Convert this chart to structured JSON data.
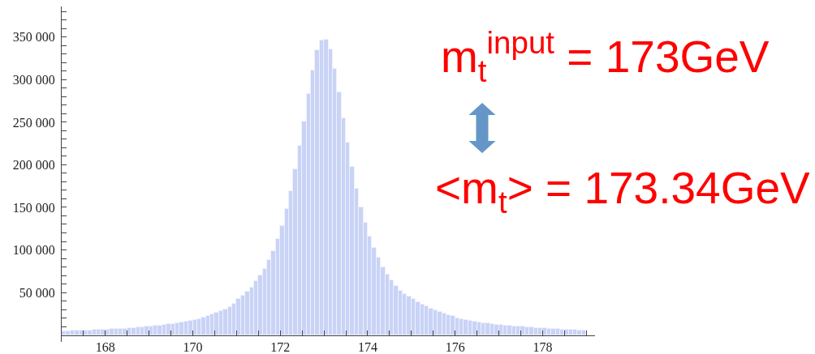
{
  "chart_data": {
    "type": "histogram",
    "bins": [
      167.0,
      167.1,
      167.2,
      167.3,
      167.4,
      167.5,
      167.6,
      167.7,
      167.8,
      167.9,
      168.0,
      168.1,
      168.2,
      168.3,
      168.4,
      168.5,
      168.6,
      168.7,
      168.8,
      168.9,
      169.0,
      169.1,
      169.2,
      169.3,
      169.4,
      169.5,
      169.6,
      169.7,
      169.8,
      169.9,
      170.0,
      170.1,
      170.2,
      170.3,
      170.4,
      170.5,
      170.6,
      170.7,
      170.8,
      170.9,
      171.0,
      171.1,
      171.2,
      171.3,
      171.4,
      171.5,
      171.6,
      171.7,
      171.8,
      171.9,
      172.0,
      172.1,
      172.2,
      172.3,
      172.4,
      172.5,
      172.6,
      172.7,
      172.8,
      172.9,
      173.0,
      173.1,
      173.2,
      173.3,
      173.4,
      173.5,
      173.6,
      173.7,
      173.8,
      173.9,
      174.0,
      174.1,
      174.2,
      174.3,
      174.4,
      174.5,
      174.6,
      174.7,
      174.8,
      174.9,
      175.0,
      175.1,
      175.2,
      175.3,
      175.4,
      175.5,
      175.6,
      175.7,
      175.8,
      175.9,
      176.0,
      176.1,
      176.2,
      176.3,
      176.4,
      176.5,
      176.6,
      176.7,
      176.8,
      176.9,
      177.0,
      177.1,
      177.2,
      177.3,
      177.4,
      177.5,
      177.6,
      177.7,
      177.8,
      177.9,
      178.0,
      178.1,
      178.2,
      178.3,
      178.4,
      178.5,
      178.6,
      178.7,
      178.8,
      178.9,
      179.0
    ],
    "values": [
      4000,
      4000,
      5000,
      5000,
      5000,
      5000,
      5000,
      6000,
      6000,
      6000,
      6000,
      7000,
      7000,
      7000,
      7000,
      8000,
      8000,
      9000,
      9000,
      10000,
      10000,
      11000,
      11000,
      12000,
      13000,
      13000,
      14000,
      15000,
      16000,
      17000,
      18000,
      19000,
      21000,
      22000,
      24000,
      26000,
      28000,
      30000,
      33000,
      37000,
      42000,
      46000,
      51000,
      56000,
      63000,
      70000,
      78000,
      88000,
      99000,
      113000,
      128000,
      148000,
      169000,
      195000,
      222000,
      251000,
      283000,
      311000,
      335000,
      346000,
      347000,
      336000,
      313000,
      285000,
      255000,
      226000,
      198000,
      172000,
      150000,
      132000,
      116000,
      102000,
      91000,
      80000,
      71000,
      64000,
      58000,
      52000,
      48000,
      45000,
      42000,
      39000,
      36000,
      34000,
      31000,
      29000,
      27000,
      25000,
      23000,
      22000,
      20000,
      19000,
      18000,
      17000,
      16000,
      15000,
      14000,
      14000,
      13000,
      12000,
      12000,
      11000,
      11000,
      10000,
      10000,
      10000,
      9000,
      9000,
      8000,
      8000,
      8000,
      7000,
      7000,
      7000,
      6000,
      6000,
      6000,
      6000,
      5000,
      5000
    ],
    "color": "#c9d3f6",
    "xlim": [
      167,
      179.2
    ],
    "ylim": [
      -8000,
      386000
    ],
    "xticks": [
      {
        "value": 167.5,
        "label": null
      },
      168,
      {
        "value": 168.5,
        "label": null
      },
      {
        "value": 169,
        "label": null
      },
      {
        "value": 169.5,
        "label": null
      },
      170,
      {
        "value": 170.5,
        "label": null
      },
      {
        "value": 171,
        "label": null
      },
      {
        "value": 171.5,
        "label": null
      },
      172,
      {
        "value": 172.5,
        "label": null
      },
      {
        "value": 173,
        "label": null
      },
      {
        "value": 173.5,
        "label": null
      },
      174,
      {
        "value": 174.5,
        "label": null
      },
      {
        "value": 175,
        "label": null
      },
      {
        "value": 175.5,
        "label": null
      },
      176,
      {
        "value": 176.5,
        "label": null
      },
      {
        "value": 177,
        "label": null
      },
      {
        "value": 177.5,
        "label": null
      },
      178,
      {
        "value": 178.5,
        "label": null
      },
      {
        "value": 179,
        "label": null
      }
    ],
    "yticks": [
      {
        "value": 10000,
        "label": null
      },
      {
        "value": 20000,
        "label": null
      },
      {
        "value": 30000,
        "label": null
      },
      {
        "value": 40000,
        "label": null
      },
      {
        "value": 50000,
        "label": "50 000"
      },
      {
        "value": 60000,
        "label": null
      },
      {
        "value": 70000,
        "label": null
      },
      {
        "value": 80000,
        "label": null
      },
      {
        "value": 90000,
        "label": null
      },
      {
        "value": 100000,
        "label": "100 000"
      },
      {
        "value": 110000,
        "label": null
      },
      {
        "value": 120000,
        "label": null
      },
      {
        "value": 130000,
        "label": null
      },
      {
        "value": 140000,
        "label": null
      },
      {
        "value": 150000,
        "label": "150 000"
      },
      {
        "value": 160000,
        "label": null
      },
      {
        "value": 170000,
        "label": null
      },
      {
        "value": 180000,
        "label": null
      },
      {
        "value": 190000,
        "label": null
      },
      {
        "value": 200000,
        "label": "200 000"
      },
      {
        "value": 210000,
        "label": null
      },
      {
        "value": 220000,
        "label": null
      },
      {
        "value": 230000,
        "label": null
      },
      {
        "value": 240000,
        "label": null
      },
      {
        "value": 250000,
        "label": "250 000"
      },
      {
        "value": 260000,
        "label": null
      },
      {
        "value": 270000,
        "label": null
      },
      {
        "value": 280000,
        "label": null
      },
      {
        "value": 290000,
        "label": null
      },
      {
        "value": 300000,
        "label": "300 000"
      },
      {
        "value": 310000,
        "label": null
      },
      {
        "value": 320000,
        "label": null
      },
      {
        "value": 330000,
        "label": null
      },
      {
        "value": 340000,
        "label": null
      },
      {
        "value": 350000,
        "label": "350 000"
      },
      {
        "value": 360000,
        "label": null
      },
      {
        "value": 370000,
        "label": null
      },
      {
        "value": 380000,
        "label": null
      }
    ],
    "annotations": [
      "m$_{t}$$^{input}$ = 173GeV",
      "<m$_{t}$> = 173.34GeV"
    ]
  }
}
